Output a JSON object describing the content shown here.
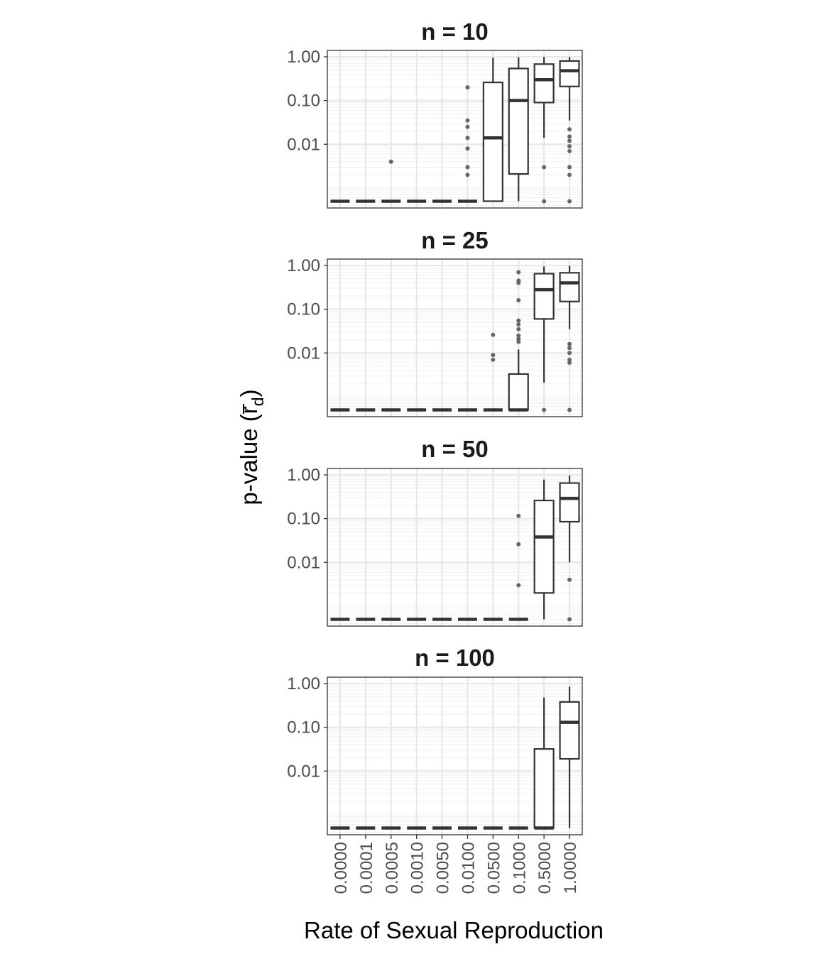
{
  "chart_data": {
    "type": "box",
    "xlabel": "Rate of Sexual Reproduction",
    "ylabel_main": "p-value (",
    "ylabel_symbol": "r",
    "ylabel_sub": "d",
    "ylabel_close": ")",
    "y_scale": "log10",
    "ylim": [
      0.00035,
      1.4
    ],
    "y_ticks": [
      0.01,
      0.1,
      1.0
    ],
    "y_tick_labels": [
      "0.01",
      "0.10",
      "1.00"
    ],
    "categories": [
      "0.0000",
      "0.0001",
      "0.0005",
      "0.0010",
      "0.0050",
      "0.0100",
      "0.0500",
      "0.1000",
      "0.5000",
      "1.0000"
    ],
    "grid": true,
    "floor_value": 0.0005,
    "panels": [
      {
        "title": "n = 10",
        "boxes": [
          {
            "q1": 0.0005,
            "median": 0.0005,
            "q3": 0.0005,
            "lo": 0.0005,
            "hi": 0.0005,
            "outliers": []
          },
          {
            "q1": 0.0005,
            "median": 0.0005,
            "q3": 0.0005,
            "lo": 0.0005,
            "hi": 0.0005,
            "outliers": []
          },
          {
            "q1": 0.0005,
            "median": 0.0005,
            "q3": 0.0005,
            "lo": 0.0005,
            "hi": 0.0005,
            "outliers": [
              0.004
            ]
          },
          {
            "q1": 0.0005,
            "median": 0.0005,
            "q3": 0.0005,
            "lo": 0.0005,
            "hi": 0.0005,
            "outliers": []
          },
          {
            "q1": 0.0005,
            "median": 0.0005,
            "q3": 0.0005,
            "lo": 0.0005,
            "hi": 0.0005,
            "outliers": []
          },
          {
            "q1": 0.0005,
            "median": 0.0005,
            "q3": 0.0005,
            "lo": 0.0005,
            "hi": 0.0005,
            "outliers": [
              0.2,
              0.035,
              0.025,
              0.014,
              0.008,
              0.003,
              0.002
            ]
          },
          {
            "q1": 0.0005,
            "median": 0.014,
            "q3": 0.26,
            "lo": 0.0005,
            "hi": 0.95,
            "outliers": []
          },
          {
            "q1": 0.0021,
            "median": 0.1,
            "q3": 0.54,
            "lo": 0.0005,
            "hi": 0.98,
            "outliers": []
          },
          {
            "q1": 0.09,
            "median": 0.3,
            "q3": 0.68,
            "lo": 0.014,
            "hi": 0.99,
            "outliers": [
              0.003,
              0.0005
            ]
          },
          {
            "q1": 0.21,
            "median": 0.48,
            "q3": 0.8,
            "lo": 0.035,
            "hi": 0.99,
            "outliers": [
              0.022,
              0.015,
              0.012,
              0.009,
              0.007,
              0.003,
              0.002,
              0.0005
            ]
          }
        ]
      },
      {
        "title": "n = 25",
        "boxes": [
          {
            "q1": 0.0005,
            "median": 0.0005,
            "q3": 0.0005,
            "lo": 0.0005,
            "hi": 0.0005,
            "outliers": []
          },
          {
            "q1": 0.0005,
            "median": 0.0005,
            "q3": 0.0005,
            "lo": 0.0005,
            "hi": 0.0005,
            "outliers": []
          },
          {
            "q1": 0.0005,
            "median": 0.0005,
            "q3": 0.0005,
            "lo": 0.0005,
            "hi": 0.0005,
            "outliers": []
          },
          {
            "q1": 0.0005,
            "median": 0.0005,
            "q3": 0.0005,
            "lo": 0.0005,
            "hi": 0.0005,
            "outliers": []
          },
          {
            "q1": 0.0005,
            "median": 0.0005,
            "q3": 0.0005,
            "lo": 0.0005,
            "hi": 0.0005,
            "outliers": []
          },
          {
            "q1": 0.0005,
            "median": 0.0005,
            "q3": 0.0005,
            "lo": 0.0005,
            "hi": 0.0005,
            "outliers": []
          },
          {
            "q1": 0.0005,
            "median": 0.0005,
            "q3": 0.0005,
            "lo": 0.0005,
            "hi": 0.0005,
            "outliers": [
              0.026,
              0.009,
              0.007
            ]
          },
          {
            "q1": 0.0005,
            "median": 0.0005,
            "q3": 0.0033,
            "lo": 0.0005,
            "hi": 0.012,
            "outliers": [
              0.7,
              0.45,
              0.4,
              0.16,
              0.055,
              0.045,
              0.035,
              0.025,
              0.021,
              0.018
            ]
          },
          {
            "q1": 0.06,
            "median": 0.28,
            "q3": 0.65,
            "lo": 0.0021,
            "hi": 0.95,
            "outliers": [
              0.0005
            ]
          },
          {
            "q1": 0.15,
            "median": 0.4,
            "q3": 0.68,
            "lo": 0.035,
            "hi": 0.98,
            "outliers": [
              0.016,
              0.013,
              0.01,
              0.007,
              0.006,
              0.0005
            ]
          }
        ]
      },
      {
        "title": "n = 50",
        "boxes": [
          {
            "q1": 0.0005,
            "median": 0.0005,
            "q3": 0.0005,
            "lo": 0.0005,
            "hi": 0.0005,
            "outliers": []
          },
          {
            "q1": 0.0005,
            "median": 0.0005,
            "q3": 0.0005,
            "lo": 0.0005,
            "hi": 0.0005,
            "outliers": []
          },
          {
            "q1": 0.0005,
            "median": 0.0005,
            "q3": 0.0005,
            "lo": 0.0005,
            "hi": 0.0005,
            "outliers": []
          },
          {
            "q1": 0.0005,
            "median": 0.0005,
            "q3": 0.0005,
            "lo": 0.0005,
            "hi": 0.0005,
            "outliers": []
          },
          {
            "q1": 0.0005,
            "median": 0.0005,
            "q3": 0.0005,
            "lo": 0.0005,
            "hi": 0.0005,
            "outliers": []
          },
          {
            "q1": 0.0005,
            "median": 0.0005,
            "q3": 0.0005,
            "lo": 0.0005,
            "hi": 0.0005,
            "outliers": []
          },
          {
            "q1": 0.0005,
            "median": 0.0005,
            "q3": 0.0005,
            "lo": 0.0005,
            "hi": 0.0005,
            "outliers": []
          },
          {
            "q1": 0.0005,
            "median": 0.0005,
            "q3": 0.0005,
            "lo": 0.0005,
            "hi": 0.0005,
            "outliers": [
              0.115,
              0.026,
              0.003
            ]
          },
          {
            "q1": 0.002,
            "median": 0.038,
            "q3": 0.26,
            "lo": 0.0005,
            "hi": 0.78,
            "outliers": []
          },
          {
            "q1": 0.085,
            "median": 0.29,
            "q3": 0.65,
            "lo": 0.01,
            "hi": 0.97,
            "outliers": [
              0.004,
              0.0005
            ]
          }
        ]
      },
      {
        "title": "n = 100",
        "boxes": [
          {
            "q1": 0.0005,
            "median": 0.0005,
            "q3": 0.0005,
            "lo": 0.0005,
            "hi": 0.0005,
            "outliers": []
          },
          {
            "q1": 0.0005,
            "median": 0.0005,
            "q3": 0.0005,
            "lo": 0.0005,
            "hi": 0.0005,
            "outliers": []
          },
          {
            "q1": 0.0005,
            "median": 0.0005,
            "q3": 0.0005,
            "lo": 0.0005,
            "hi": 0.0005,
            "outliers": []
          },
          {
            "q1": 0.0005,
            "median": 0.0005,
            "q3": 0.0005,
            "lo": 0.0005,
            "hi": 0.0005,
            "outliers": []
          },
          {
            "q1": 0.0005,
            "median": 0.0005,
            "q3": 0.0005,
            "lo": 0.0005,
            "hi": 0.0005,
            "outliers": []
          },
          {
            "q1": 0.0005,
            "median": 0.0005,
            "q3": 0.0005,
            "lo": 0.0005,
            "hi": 0.0005,
            "outliers": []
          },
          {
            "q1": 0.0005,
            "median": 0.0005,
            "q3": 0.0005,
            "lo": 0.0005,
            "hi": 0.0005,
            "outliers": []
          },
          {
            "q1": 0.0005,
            "median": 0.0005,
            "q3": 0.0005,
            "lo": 0.0005,
            "hi": 0.0005,
            "outliers": []
          },
          {
            "q1": 0.0005,
            "median": 0.0005,
            "q3": 0.032,
            "lo": 0.0005,
            "hi": 0.48,
            "outliers": []
          },
          {
            "q1": 0.019,
            "median": 0.13,
            "q3": 0.38,
            "lo": 0.0005,
            "hi": 0.85,
            "outliers": []
          }
        ]
      }
    ]
  }
}
